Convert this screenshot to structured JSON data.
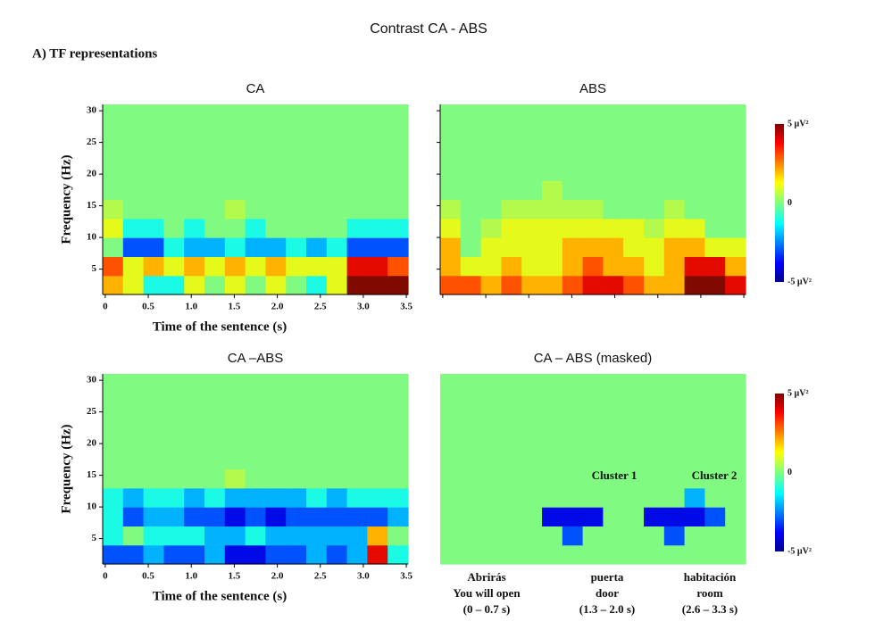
{
  "title": "Contrast CA - ABS",
  "section": "A) TF representations",
  "chart_data": [
    {
      "type": "heatmap",
      "title": "CA",
      "ylabel": "Frequency (Hz)",
      "xlabel": "Time of the sentence (s)",
      "xlim": [
        -0.03,
        3.52
      ],
      "ylim": [
        1,
        31
      ],
      "clim": [
        -5,
        5
      ],
      "tick_labels": true,
      "xticks": [
        0,
        0.5,
        {
          "value": 1,
          "label": "1.0"
        },
        1.5,
        {
          "value": 2,
          "label": "2.0"
        },
        2.5,
        {
          "value": 3,
          "label": "3.0"
        },
        3.5
      ],
      "yticks": [
        5,
        10,
        15,
        20,
        25,
        30
      ],
      "z": [
        [
          2,
          1,
          -1,
          -1,
          1,
          0,
          1,
          0,
          1,
          0,
          -1,
          1,
          5,
          5,
          5
        ],
        [
          3,
          1,
          2,
          1,
          2,
          1,
          2,
          1,
          2,
          1,
          1,
          1,
          4,
          4,
          3
        ],
        [
          0,
          -3,
          -3,
          -1,
          -2,
          -2,
          -1,
          -2,
          -2,
          -1,
          -2,
          -1,
          -3,
          -3,
          -3
        ],
        [
          1,
          -1,
          -1,
          0,
          -1,
          0,
          0,
          -1,
          0,
          0,
          0,
          0,
          -1,
          -1,
          -1
        ],
        [
          0.5,
          0,
          0,
          0,
          0,
          0,
          0.5,
          0,
          0,
          0,
          0,
          0,
          0,
          0,
          0
        ],
        [
          0,
          0,
          0,
          0,
          0,
          0,
          0,
          0,
          0,
          0,
          0,
          0,
          0,
          0,
          0
        ],
        [
          0,
          0,
          0,
          0,
          0,
          0,
          0,
          0,
          0,
          0,
          0,
          0,
          0,
          0,
          0
        ],
        [
          0,
          0,
          0,
          0,
          0,
          0,
          0,
          0,
          0,
          0,
          0,
          0,
          0,
          0,
          0
        ],
        [
          0,
          0,
          0,
          0,
          0,
          0,
          0,
          0,
          0,
          0,
          0,
          0,
          0,
          0,
          0
        ],
        [
          0,
          0,
          0,
          0,
          0,
          0,
          0,
          0,
          0,
          0,
          0,
          0,
          0,
          0,
          0
        ]
      ]
    },
    {
      "type": "heatmap",
      "title": "ABS",
      "xlim": [
        -0.03,
        3.52
      ],
      "ylim": [
        1,
        31
      ],
      "clim": [
        -5,
        5
      ],
      "tick_labels": false,
      "xticks": [
        0,
        0.5,
        1,
        1.5,
        2,
        2.5,
        3,
        3.5
      ],
      "yticks": [
        5,
        10,
        15,
        20,
        25,
        30
      ],
      "colorbar": [
        {
          "value": 5,
          "label": "5 µV²"
        },
        0,
        {
          "value": -5,
          "label": "-5 µV²"
        }
      ],
      "z": [
        [
          3,
          3,
          2,
          3,
          2,
          2,
          3,
          4,
          4,
          3,
          2,
          2,
          5,
          5,
          4
        ],
        [
          2,
          1,
          1,
          2,
          1,
          1,
          2,
          3,
          2,
          2,
          1,
          2,
          4,
          4,
          2
        ],
        [
          2,
          0,
          1,
          1,
          1,
          1,
          2,
          2,
          2,
          1,
          1,
          2,
          2,
          1,
          1
        ],
        [
          1,
          0,
          0.5,
          1,
          1,
          1,
          1,
          1,
          1,
          1,
          0.5,
          1,
          1,
          0,
          0
        ],
        [
          0.5,
          0,
          0,
          0.5,
          0.5,
          0.5,
          0.5,
          0.5,
          0,
          0,
          0,
          0.5,
          0,
          0,
          0
        ],
        [
          0,
          0,
          0,
          0,
          0,
          0.5,
          0,
          0,
          0,
          0,
          0,
          0,
          0,
          0,
          0
        ],
        [
          0,
          0,
          0,
          0,
          0,
          0,
          0,
          0,
          0,
          0,
          0,
          0,
          0,
          0,
          0
        ],
        [
          0,
          0,
          0,
          0,
          0,
          0,
          0,
          0,
          0,
          0,
          0,
          0,
          0,
          0,
          0
        ],
        [
          0,
          0,
          0,
          0,
          0,
          0,
          0,
          0,
          0,
          0,
          0,
          0,
          0,
          0,
          0
        ],
        [
          0,
          0,
          0,
          0,
          0,
          0,
          0,
          0,
          0,
          0,
          0,
          0,
          0,
          0,
          0
        ]
      ]
    },
    {
      "type": "heatmap",
      "title": "CA –ABS",
      "ylabel": "Frequency (Hz)",
      "xlabel": "Time of the sentence (s)",
      "xlim": [
        -0.03,
        3.52
      ],
      "ylim": [
        1,
        31
      ],
      "clim": [
        -5,
        5
      ],
      "tick_labels": true,
      "xticks": [
        0,
        0.5,
        {
          "value": 1,
          "label": "1.0"
        },
        1.5,
        {
          "value": 2,
          "label": "2.0"
        },
        2.5,
        {
          "value": 3,
          "label": "3.0"
        },
        3.5
      ],
      "yticks": [
        5,
        10,
        15,
        20,
        25,
        30
      ],
      "z": [
        [
          -3,
          -3,
          -2,
          -3,
          -3,
          -2,
          -4,
          -4,
          -3,
          -3,
          -2,
          -3,
          -2,
          4,
          -1
        ],
        [
          -1,
          0,
          -1,
          -1,
          -1,
          -2,
          -2,
          -1,
          -2,
          -2,
          -2,
          -2,
          -2,
          2,
          0
        ],
        [
          -1,
          -3,
          -2,
          -2,
          -3,
          -3,
          -4,
          -3,
          -4,
          -3,
          -3,
          -3,
          -3,
          -3,
          -2
        ],
        [
          -1,
          -2,
          -1,
          -1,
          -2,
          -1,
          -2,
          -2,
          -2,
          -2,
          -1,
          -2,
          -1,
          -1,
          -1
        ],
        [
          0,
          0,
          0,
          0,
          0,
          0,
          0.5,
          0,
          0,
          0,
          0,
          0,
          0,
          0,
          0
        ],
        [
          0,
          0,
          0,
          0,
          0,
          0,
          0,
          0,
          0,
          0,
          0,
          0,
          0,
          0,
          0
        ],
        [
          0,
          0,
          0,
          0,
          0,
          0,
          0,
          0,
          0,
          0,
          0,
          0,
          0,
          0,
          0
        ],
        [
          0,
          0,
          0,
          0,
          0,
          0,
          0,
          0,
          0,
          0,
          0,
          0,
          0,
          0,
          0
        ],
        [
          0,
          0,
          0,
          0,
          0,
          0,
          0,
          0,
          0,
          0,
          0,
          0,
          0,
          0,
          0
        ],
        [
          0,
          0,
          0,
          0,
          0,
          0,
          0,
          0,
          0,
          0,
          0,
          0,
          0,
          0,
          0
        ]
      ]
    },
    {
      "type": "heatmap",
      "title": "CA – ABS (masked)",
      "xlim": [
        -0.03,
        3.52
      ],
      "ylim": [
        1,
        31
      ],
      "clim": [
        -5,
        5
      ],
      "colorbar": [
        {
          "value": 5,
          "label": "5 µV²"
        },
        0,
        {
          "value": -5,
          "label": "-5 µV²"
        }
      ],
      "annotations": [
        "Cluster 1",
        "Cluster 2"
      ],
      "labels": [
        [
          "Abrirás",
          "You will open",
          "(0 – 0.7 s)"
        ],
        [
          "puerta",
          "door",
          "(1.3 – 2.0 s)"
        ],
        [
          "habitación",
          "room",
          "(2.6 – 3.3 s)"
        ]
      ],
      "z": [
        [
          0,
          0,
          0,
          0,
          0,
          0,
          0,
          0,
          0,
          0,
          0,
          0,
          0,
          0,
          0
        ],
        [
          0,
          0,
          0,
          0,
          0,
          0,
          -3,
          0,
          0,
          0,
          0,
          -3,
          0,
          0,
          0
        ],
        [
          0,
          0,
          0,
          0,
          0,
          -4,
          -4,
          -4,
          0,
          0,
          -4,
          -4,
          -4,
          -3,
          0
        ],
        [
          0,
          0,
          0,
          0,
          0,
          0,
          0,
          0,
          0,
          0,
          0,
          0,
          -2,
          0,
          0
        ],
        [
          0,
          0,
          0,
          0,
          0,
          0,
          0,
          0,
          0,
          0,
          0,
          0,
          0,
          0,
          0
        ],
        [
          0,
          0,
          0,
          0,
          0,
          0,
          0,
          0,
          0,
          0,
          0,
          0,
          0,
          0,
          0
        ],
        [
          0,
          0,
          0,
          0,
          0,
          0,
          0,
          0,
          0,
          0,
          0,
          0,
          0,
          0,
          0
        ],
        [
          0,
          0,
          0,
          0,
          0,
          0,
          0,
          0,
          0,
          0,
          0,
          0,
          0,
          0,
          0
        ],
        [
          0,
          0,
          0,
          0,
          0,
          0,
          0,
          0,
          0,
          0,
          0,
          0,
          0,
          0,
          0
        ],
        [
          0,
          0,
          0,
          0,
          0,
          0,
          0,
          0,
          0,
          0,
          0,
          0,
          0,
          0,
          0
        ]
      ]
    }
  ]
}
